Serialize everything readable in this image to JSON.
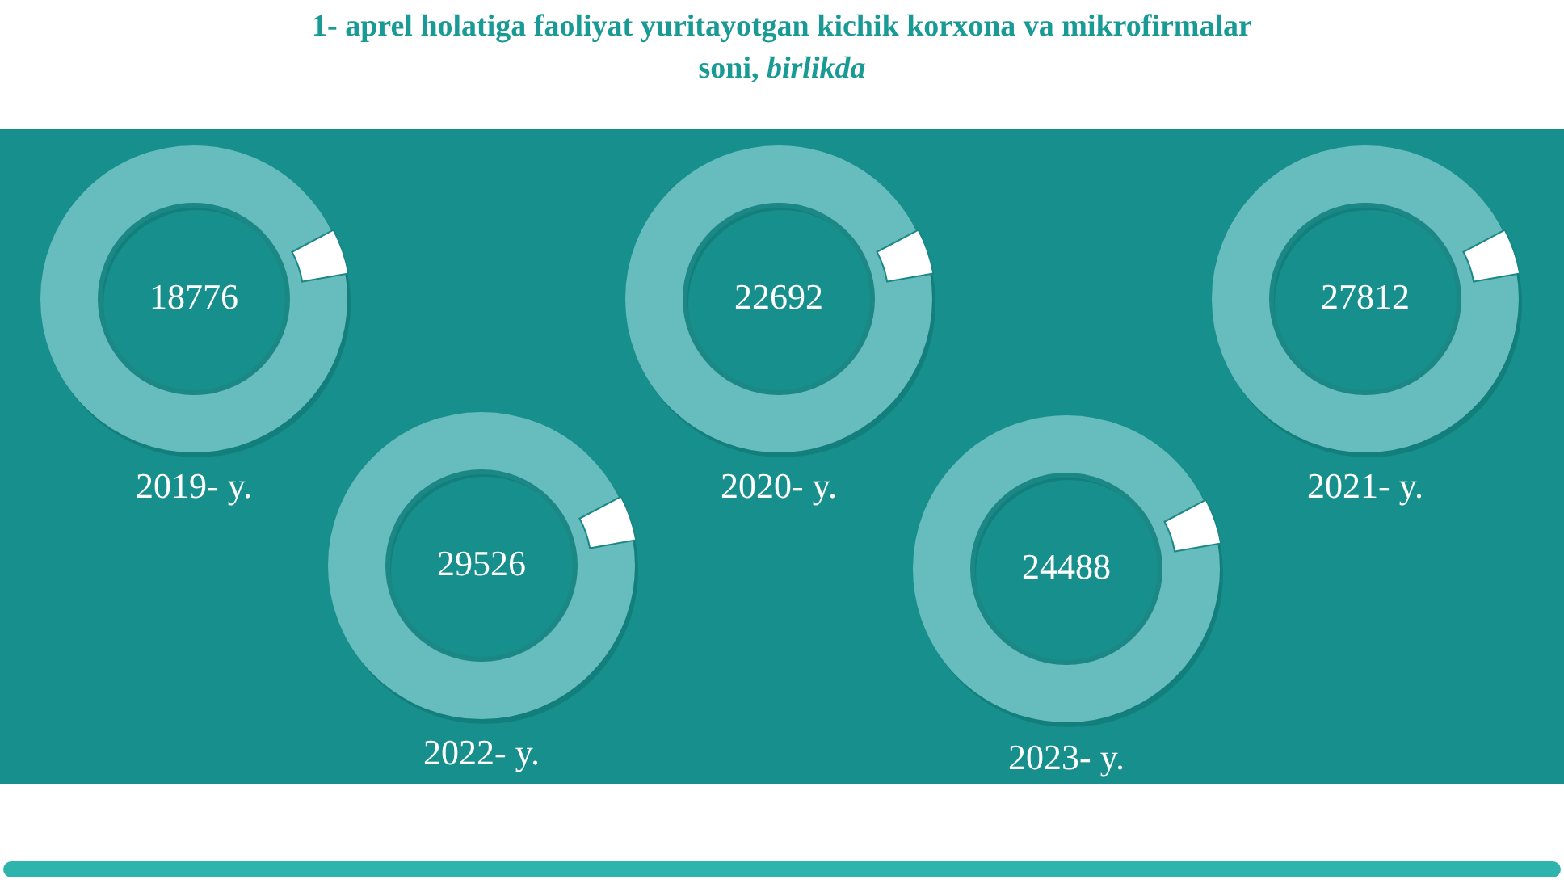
{
  "chart_data": {
    "type": "other",
    "title": "1- aprel holatiga faoliyat yuritayotgan kichik korxona va mikrofirmalar soni, birlikda",
    "categories": [
      "2019- y.",
      "2020- y.",
      "2021- y.",
      "2022- y.",
      "2023- y."
    ],
    "values": [
      18776,
      22692,
      27812,
      29526,
      24488
    ],
    "data_labels": true
  }
}
